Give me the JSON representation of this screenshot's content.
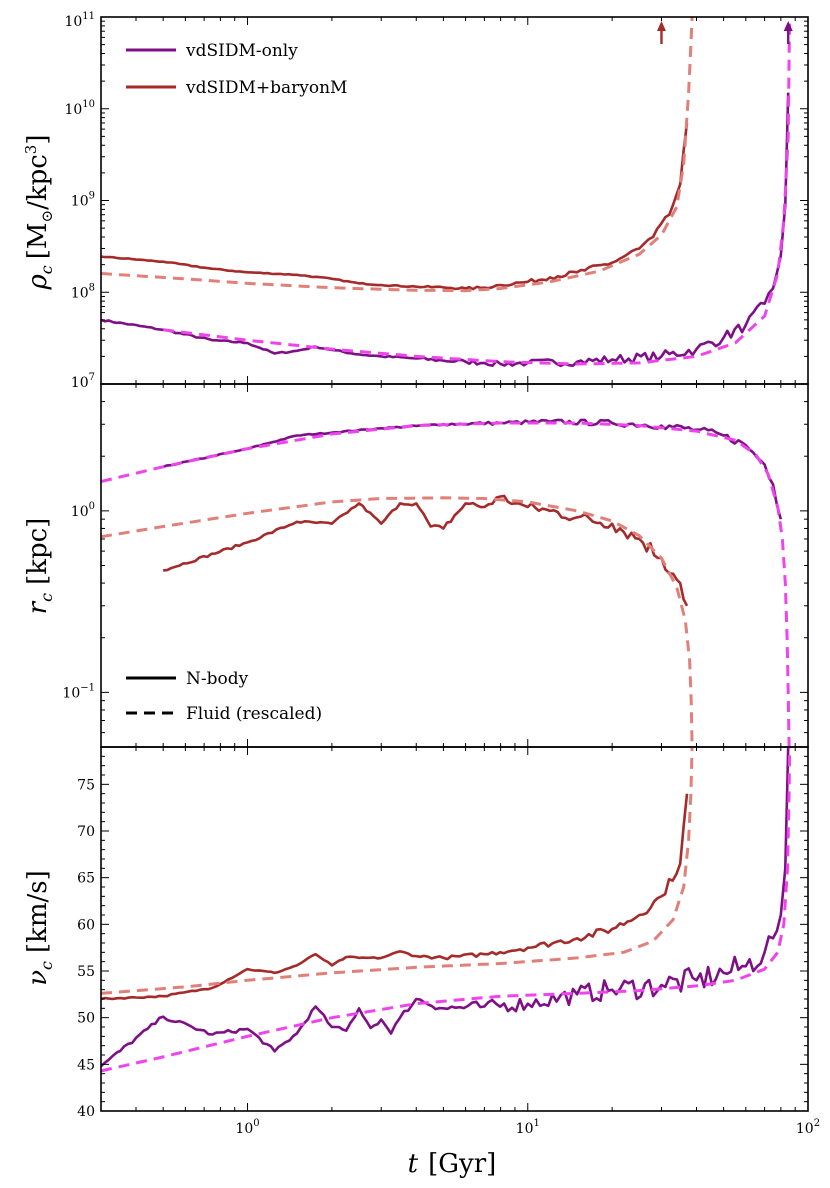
{
  "colors": {
    "vdsidm_solid": "#7f0f86",
    "vdsidm_dashed": "#ee44ee",
    "baryon_solid": "#a52a2a",
    "baryon_dashed": "#e08078"
  },
  "chart_data": [
    {
      "type": "line",
      "panel": "top",
      "ylabel": "ρ_c [M_⊙/kpc³]",
      "ylabel_parts": {
        "sym": "ρ",
        "sub": "c",
        "unit_a": "[M",
        "sun": "⊙",
        "unit_b": "/kpc",
        "sup": "3",
        "close": "]"
      },
      "yscale": "log",
      "ylim": [
        10000000.0,
        100000000000.0
      ],
      "yticks": [
        {
          "value": 10000000.0,
          "base": "10",
          "exp": "7"
        },
        {
          "value": 100000000.0,
          "base": "10",
          "exp": "8"
        },
        {
          "value": 1000000000.0,
          "base": "10",
          "exp": "9"
        },
        {
          "value": 10000000000.0,
          "base": "10",
          "exp": "10"
        },
        {
          "value": 100000000000.0,
          "base": "10",
          "exp": "11"
        }
      ],
      "legend": [
        {
          "label": "vdSIDM-only",
          "color": "#7f0f86",
          "style": "solid"
        },
        {
          "label": "vdSIDM+baryonM",
          "color": "#a52a2a",
          "style": "solid"
        }
      ],
      "legend_position": "top-left",
      "arrows": [
        {
          "x": 30,
          "series": "vdSIDM+baryonM"
        },
        {
          "x": 85,
          "series": "vdSIDM-only"
        }
      ],
      "series": [
        {
          "name": "vdSIDM-only (N-body)",
          "style": "solid",
          "color": "#7f0f86",
          "noise": 0.06,
          "x": [
            0.3,
            0.5,
            0.75,
            1.0,
            1.25,
            1.5,
            1.75,
            2.0,
            2.5,
            3.0,
            4,
            5,
            6,
            7,
            8,
            10,
            15,
            20,
            30,
            40,
            50,
            60,
            70,
            75,
            80,
            83,
            85
          ],
          "y": [
            50000000.0,
            39000000.0,
            30000000.0,
            28000000.0,
            21500000.0,
            23000000.0,
            25500000.0,
            23500000.0,
            21000000.0,
            20000000.0,
            19000000.0,
            18000000.0,
            17500000.0,
            17000000.0,
            16500000.0,
            17000000.0,
            17500000.0,
            18500000.0,
            20000000.0,
            24000000.0,
            32000000.0,
            44000000.0,
            75000000.0,
            110000000.0,
            250000000.0,
            900000000.0,
            15000000000.0
          ]
        },
        {
          "name": "vdSIDM-only (Fluid rescaled)",
          "style": "dashed",
          "color": "#ee44ee",
          "noise": 0,
          "x": [
            0.5,
            1.0,
            2.0,
            4,
            8,
            15,
            25,
            40,
            55,
            70,
            78,
            82,
            85,
            86
          ],
          "y": [
            39000000.0,
            30000000.0,
            24000000.0,
            20000000.0,
            17500000.0,
            16500000.0,
            17000000.0,
            20000000.0,
            28000000.0,
            55000000.0,
            160000000.0,
            600000000.0,
            5000000000.0,
            100000000000.0
          ]
        },
        {
          "name": "vdSIDM+baryonM (N-body)",
          "style": "solid",
          "color": "#a52a2a",
          "noise": 0.035,
          "x": [
            0.3,
            0.5,
            0.75,
            1.0,
            1.5,
            2.0,
            2.5,
            3.0,
            4,
            5,
            6,
            7,
            8,
            10,
            12,
            15,
            20,
            25,
            28,
            32,
            35,
            37
          ],
          "y": [
            245000000.0,
            215000000.0,
            180000000.0,
            165000000.0,
            155000000.0,
            140000000.0,
            125000000.0,
            120000000.0,
            115000000.0,
            113000000.0,
            110000000.0,
            112000000.0,
            120000000.0,
            130000000.0,
            145000000.0,
            165000000.0,
            210000000.0,
            300000000.0,
            400000000.0,
            700000000.0,
            1500000000.0,
            7000000000.0
          ]
        },
        {
          "name": "vdSIDM+baryonM (Fluid rescaled)",
          "style": "dashed",
          "color": "#e08078",
          "noise": 0,
          "x": [
            0.3,
            0.6,
            1.0,
            2.0,
            4,
            6,
            8,
            12,
            18,
            25,
            30,
            34,
            36,
            37.5,
            38.2,
            38.6
          ],
          "y": [
            160000000.0,
            140000000.0,
            125000000.0,
            112000000.0,
            105000000.0,
            104000000.0,
            110000000.0,
            130000000.0,
            170000000.0,
            260000000.0,
            420000000.0,
            850000000.0,
            2500000000.0,
            15000000000.0,
            50000000000.0,
            100000000000.0
          ]
        }
      ]
    },
    {
      "type": "line",
      "panel": "middle",
      "ylabel": "r_c [kpc]",
      "ylabel_parts": {
        "sym": "r",
        "sub": "c",
        "unit": "[kpc]"
      },
      "yscale": "log",
      "ylim": [
        0.05,
        5
      ],
      "yticks": [
        {
          "value": 0.1,
          "base": "10",
          "exp": "−1"
        },
        {
          "value": 1.0,
          "base": "10",
          "exp": "0"
        }
      ],
      "legend": [
        {
          "label": "N-body",
          "color": "#000000",
          "style": "solid"
        },
        {
          "label": "Fluid (rescaled)",
          "color": "#000000",
          "style": "dashed"
        }
      ],
      "legend_position": "bottom-left",
      "series": [
        {
          "name": "vdSIDM-only (N-body)",
          "style": "solid",
          "color": "#7f0f86",
          "noise": 0.02,
          "x": [
            0.5,
            1.0,
            1.5,
            2.0,
            3.0,
            5,
            8,
            12,
            20,
            30,
            40,
            50,
            60,
            70,
            75,
            80
          ],
          "y": [
            1.75,
            2.2,
            2.6,
            2.7,
            2.85,
            3.0,
            3.05,
            3.1,
            3.05,
            2.95,
            2.8,
            2.6,
            2.3,
            1.8,
            1.4,
            0.9
          ]
        },
        {
          "name": "vdSIDM-only (Fluid rescaled)",
          "style": "dashed",
          "color": "#ee44ee",
          "noise": 0,
          "x": [
            0.3,
            0.5,
            1.0,
            2.0,
            4,
            8,
            15,
            25,
            40,
            55,
            65,
            72,
            78,
            81,
            83,
            84.2,
            85,
            85.6
          ],
          "y": [
            1.45,
            1.75,
            2.2,
            2.65,
            2.95,
            3.05,
            3.05,
            2.95,
            2.75,
            2.45,
            2.05,
            1.6,
            1.05,
            0.7,
            0.4,
            0.2,
            0.1,
            0.05
          ]
        },
        {
          "name": "vdSIDM+baryonM (N-body)",
          "style": "solid",
          "color": "#a52a2a",
          "noise": 0.045,
          "x": [
            0.5,
            1.0,
            1.5,
            2.0,
            2.5,
            3.0,
            3.5,
            4,
            4.5,
            5,
            6,
            7,
            8,
            9,
            10,
            12,
            15,
            20,
            25,
            30,
            33,
            35,
            37
          ],
          "y": [
            0.47,
            0.67,
            0.87,
            0.85,
            1.1,
            0.85,
            1.1,
            1.1,
            0.82,
            0.8,
            1.1,
            1.05,
            1.2,
            1.1,
            1.05,
            1.0,
            0.92,
            0.85,
            0.7,
            0.55,
            0.45,
            0.4,
            0.3
          ]
        },
        {
          "name": "vdSIDM+baryonM (Fluid rescaled)",
          "style": "dashed",
          "color": "#e08078",
          "noise": 0,
          "x": [
            0.3,
            0.5,
            1.0,
            2.0,
            3.0,
            5,
            7,
            10,
            15,
            20,
            25,
            30,
            34,
            36.5,
            37.8,
            38.3,
            38.6
          ],
          "y": [
            0.72,
            0.82,
            0.97,
            1.12,
            1.17,
            1.18,
            1.17,
            1.12,
            1.0,
            0.88,
            0.73,
            0.55,
            0.38,
            0.25,
            0.15,
            0.09,
            0.05
          ]
        }
      ]
    },
    {
      "type": "line",
      "panel": "bottom",
      "ylabel": "ν_c [km/s]",
      "ylabel_parts": {
        "sym": "ν",
        "sub": "c",
        "unit": "[km/s]"
      },
      "xlabel": "t [Gyr]",
      "xlabel_parts": {
        "sym": "t",
        "unit": "[Gyr]"
      },
      "xscale": "log",
      "xlim": [
        0.3,
        100
      ],
      "xticks": [
        {
          "value": 1,
          "base": "10",
          "exp": "0"
        },
        {
          "value": 10,
          "base": "10",
          "exp": "1"
        },
        {
          "value": 100,
          "base": "10",
          "exp": "2"
        }
      ],
      "yscale": "linear",
      "ylim": [
        40,
        79
      ],
      "yticks": [
        {
          "value": 40,
          "label": "40"
        },
        {
          "value": 45,
          "label": "45"
        },
        {
          "value": 50,
          "label": "50"
        },
        {
          "value": 55,
          "label": "55"
        },
        {
          "value": 60,
          "label": "60"
        },
        {
          "value": 65,
          "label": "65"
        },
        {
          "value": 70,
          "label": "70"
        },
        {
          "value": 75,
          "label": "75"
        }
      ],
      "series": [
        {
          "name": "vdSIDM-only (N-body)",
          "style": "solid",
          "color": "#7f0f86",
          "noise": 1.4,
          "x": [
            0.3,
            0.5,
            0.75,
            1.0,
            1.25,
            1.5,
            1.75,
            2.0,
            2.25,
            2.5,
            2.75,
            3.0,
            3.25,
            3.5,
            4,
            5,
            7,
            10,
            15,
            20,
            30,
            40,
            50,
            60,
            70,
            75,
            80,
            83,
            85
          ],
          "y": [
            44.8,
            50.1,
            48.2,
            48.8,
            46.4,
            48.3,
            51.2,
            49.0,
            48.6,
            51.0,
            48.9,
            49.8,
            48.3,
            50.0,
            52.0,
            51.0,
            51.2,
            51.5,
            52.5,
            53.0,
            53.5,
            54.0,
            54.8,
            55.5,
            57.0,
            58.5,
            61.0,
            66.0,
            79.0
          ]
        },
        {
          "name": "vdSIDM-only (Fluid rescaled)",
          "style": "dashed",
          "color": "#ee44ee",
          "noise": 0,
          "x": [
            0.3,
            0.5,
            1.0,
            2.0,
            4,
            8,
            15,
            25,
            40,
            55,
            70,
            78,
            82,
            84.5,
            85.6,
            86
          ],
          "y": [
            44.3,
            45.8,
            48.0,
            50.0,
            51.5,
            52.3,
            52.6,
            52.9,
            53.4,
            54.0,
            55.2,
            57.0,
            60.0,
            66.0,
            74.0,
            79.0
          ]
        },
        {
          "name": "vdSIDM+baryonM (N-body)",
          "style": "solid",
          "color": "#a52a2a",
          "noise": 0.5,
          "x": [
            0.3,
            0.5,
            0.75,
            1.0,
            1.25,
            1.5,
            1.75,
            2.0,
            2.25,
            2.5,
            3.0,
            3.5,
            4,
            5,
            7,
            10,
            15,
            20,
            25,
            30,
            35,
            37
          ],
          "y": [
            52.0,
            52.3,
            53.2,
            55.2,
            54.8,
            55.6,
            56.8,
            55.6,
            56.5,
            56.4,
            56.4,
            57.1,
            56.6,
            56.4,
            56.8,
            57.5,
            58.5,
            59.5,
            61.0,
            63.0,
            66.5,
            74.0
          ]
        },
        {
          "name": "vdSIDM+baryonM (Fluid rescaled)",
          "style": "dashed",
          "color": "#e08078",
          "noise": 0,
          "x": [
            0.3,
            0.6,
            1.0,
            2.0,
            4,
            8,
            15,
            22,
            28,
            33,
            36,
            37.5,
            38.2,
            38.6
          ],
          "y": [
            52.6,
            53.3,
            54.0,
            54.8,
            55.4,
            55.8,
            56.4,
            57.0,
            58.2,
            60.5,
            64.0,
            69.0,
            74.0,
            79.0
          ]
        }
      ]
    }
  ]
}
